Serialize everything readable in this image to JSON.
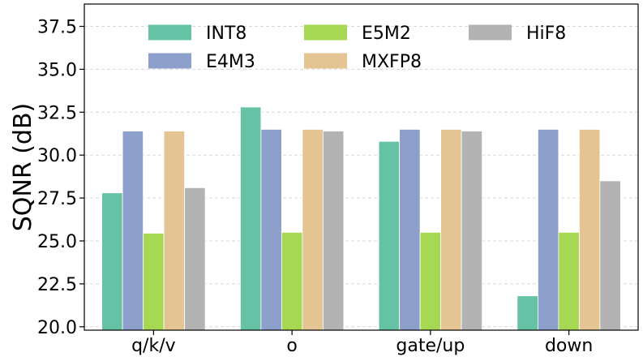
{
  "chart_data": {
    "type": "bar",
    "title": "",
    "xlabel": "",
    "ylabel": "SQNR (dB)",
    "ylim": [
      19.8,
      38.8
    ],
    "yticks": [
      "20.0",
      "22.5",
      "25.0",
      "27.5",
      "30.0",
      "32.5",
      "35.0",
      "37.5"
    ],
    "ytick_values": [
      20.0,
      22.5,
      25.0,
      27.5,
      30.0,
      32.5,
      35.0,
      37.5
    ],
    "grid": true,
    "legend_position": "top",
    "categories": [
      "q/k/v",
      "o",
      "gate/up",
      "down"
    ],
    "series": [
      {
        "name": "INT8",
        "color": "#66c2a5",
        "values": [
          27.8,
          32.8,
          30.8,
          21.8
        ]
      },
      {
        "name": "E4M3",
        "color": "#8da0cb",
        "values": [
          31.4,
          31.5,
          31.5,
          31.5
        ]
      },
      {
        "name": "E5M2",
        "color": "#a6d854",
        "values": [
          25.45,
          25.5,
          25.5,
          25.5
        ]
      },
      {
        "name": "MXFP8",
        "color": "#e5c494",
        "values": [
          31.4,
          31.5,
          31.5,
          31.5
        ]
      },
      {
        "name": "HiF8",
        "color": "#b3b3b3",
        "values": [
          28.1,
          31.4,
          31.4,
          28.5
        ]
      }
    ]
  }
}
